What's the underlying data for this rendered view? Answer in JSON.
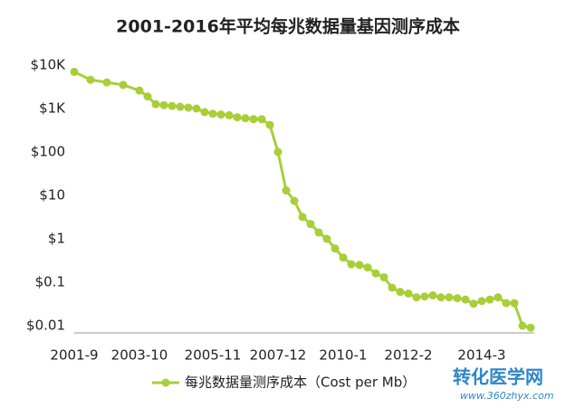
{
  "chart_data": {
    "type": "line",
    "title": "2001-2016年平均每兆数据量基因测序成本",
    "categories": [
      "2001-9",
      null,
      null,
      null,
      "2003-10",
      null,
      null,
      null,
      null,
      null,
      null,
      null,
      null,
      "2005-11",
      null,
      null,
      null,
      null,
      null,
      null,
      null,
      "2007-12",
      null,
      null,
      null,
      null,
      null,
      null,
      null,
      "2010-1",
      null,
      null,
      null,
      null,
      null,
      null,
      null,
      "2012-2",
      null,
      null,
      null,
      null,
      null,
      null,
      null,
      null,
      "2014-3",
      null,
      null,
      null,
      null,
      null,
      null
    ],
    "series": [
      {
        "name": "每兆数据量测序成本（Cost per Mb）",
        "color": "#a8cf38",
        "values": [
          7000,
          4600,
          4000,
          3500,
          2600,
          1900,
          1260,
          1200,
          1150,
          1100,
          1050,
          1000,
          830,
          760,
          730,
          700,
          630,
          600,
          570,
          570,
          420,
          100,
          13,
          7.5,
          3.2,
          2.2,
          1.4,
          1.0,
          0.6,
          0.37,
          0.26,
          0.25,
          0.22,
          0.16,
          0.13,
          0.075,
          0.06,
          0.055,
          0.045,
          0.047,
          0.05,
          0.045,
          0.045,
          0.043,
          0.04,
          0.032,
          0.037,
          0.04,
          0.045,
          0.033,
          0.033,
          0.01,
          0.009
        ]
      }
    ],
    "log_scale": true,
    "ylim": [
      0.01,
      10000
    ],
    "yticks": [
      {
        "value": 0.01,
        "label": "$0.01"
      },
      {
        "value": 0.1,
        "label": "$0.1"
      },
      {
        "value": 1,
        "label": "$1"
      },
      {
        "value": 10,
        "label": "$10"
      },
      {
        "value": 100,
        "label": "$100"
      },
      {
        "value": 1000,
        "label": "$1K"
      },
      {
        "value": 10000,
        "label": "$10K"
      }
    ],
    "grid": false,
    "legend": "bottom",
    "watermark": {
      "name": "转化医学网",
      "url": "www.360zhyx.com"
    }
  }
}
